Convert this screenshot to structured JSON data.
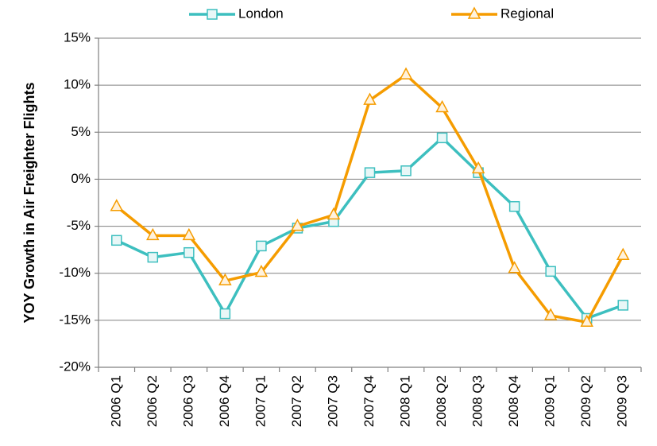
{
  "chart_data": {
    "type": "line",
    "y_label": "YOY Growth in Air Freighter Flights",
    "categories": [
      "2006 Q1",
      "2006 Q2",
      "2006 Q3",
      "2006 Q4",
      "2007 Q1",
      "2007 Q2",
      "2007 Q3",
      "2007 Q4",
      "2008 Q1",
      "2008 Q2",
      "2008 Q3",
      "2008 Q4",
      "2009 Q1",
      "2009 Q2",
      "2009 Q3"
    ],
    "series": [
      {
        "name": "London",
        "color": "#3dbfbf",
        "marker": "square",
        "values": [
          -6.5,
          -8.3,
          -7.8,
          -14.3,
          -7.1,
          -5.2,
          -4.5,
          0.7,
          0.9,
          4.4,
          0.7,
          -2.9,
          -9.8,
          -14.8,
          -13.4
        ]
      },
      {
        "name": "Regional",
        "color": "#f59c00",
        "marker": "triangle",
        "values": [
          -2.9,
          -6.0,
          -6.0,
          -10.8,
          -9.9,
          -5.0,
          -3.8,
          8.4,
          11.1,
          7.6,
          1.1,
          -9.5,
          -14.5,
          -15.2,
          -8.1
        ]
      }
    ],
    "ylim": [
      -20,
      15
    ],
    "yticks": [
      {
        "value": -20,
        "label": "-20%"
      },
      {
        "value": -15,
        "label": "-15%"
      },
      {
        "value": -10,
        "label": "-10%"
      },
      {
        "value": -5,
        "label": "-5%"
      },
      {
        "value": 0,
        "label": "0%"
      },
      {
        "value": 5,
        "label": "5%"
      },
      {
        "value": 10,
        "label": "10%"
      },
      {
        "value": 15,
        "label": "15%"
      }
    ],
    "grid": true,
    "legend": "top"
  }
}
